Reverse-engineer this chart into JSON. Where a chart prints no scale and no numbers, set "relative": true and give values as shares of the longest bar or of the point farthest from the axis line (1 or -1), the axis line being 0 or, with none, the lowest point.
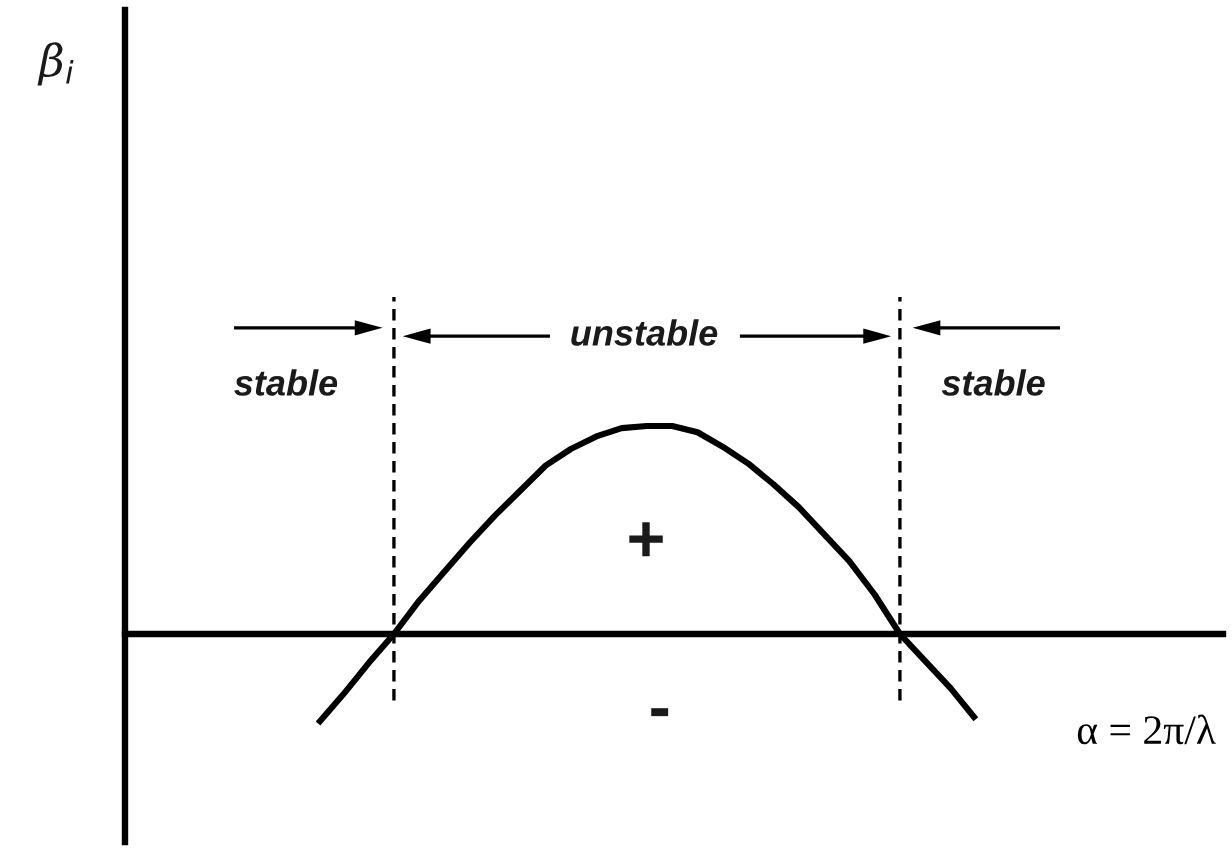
{
  "chart_data": {
    "type": "line",
    "relative": true,
    "xlabel": "α = 2π/λ",
    "categories": [
      null,
      null,
      null,
      null,
      null,
      null,
      null,
      null,
      null,
      null,
      null,
      null,
      null,
      null,
      null,
      null,
      null,
      null,
      null,
      null,
      null,
      null,
      null,
      null,
      null,
      null,
      null
    ],
    "series": [
      {
        "color": "#000000",
        "values": [
          -0.43,
          -0.29,
          -0.14,
          0,
          0.16,
          0.3,
          0.44,
          0.57,
          0.69,
          0.81,
          0.89,
          0.95,
          0.99,
          1.0,
          1.0,
          0.97,
          0.9,
          0.82,
          0.72,
          0.61,
          0.48,
          0.35,
          0.19,
          0,
          -0.13,
          -0.26,
          -0.41
        ]
      }
    ],
    "annotations": [
      "β$_{i}$",
      "stable",
      "unstable",
      "stable",
      "+",
      "-"
    ],
    "marker": "none",
    "line_style": "solid"
  }
}
